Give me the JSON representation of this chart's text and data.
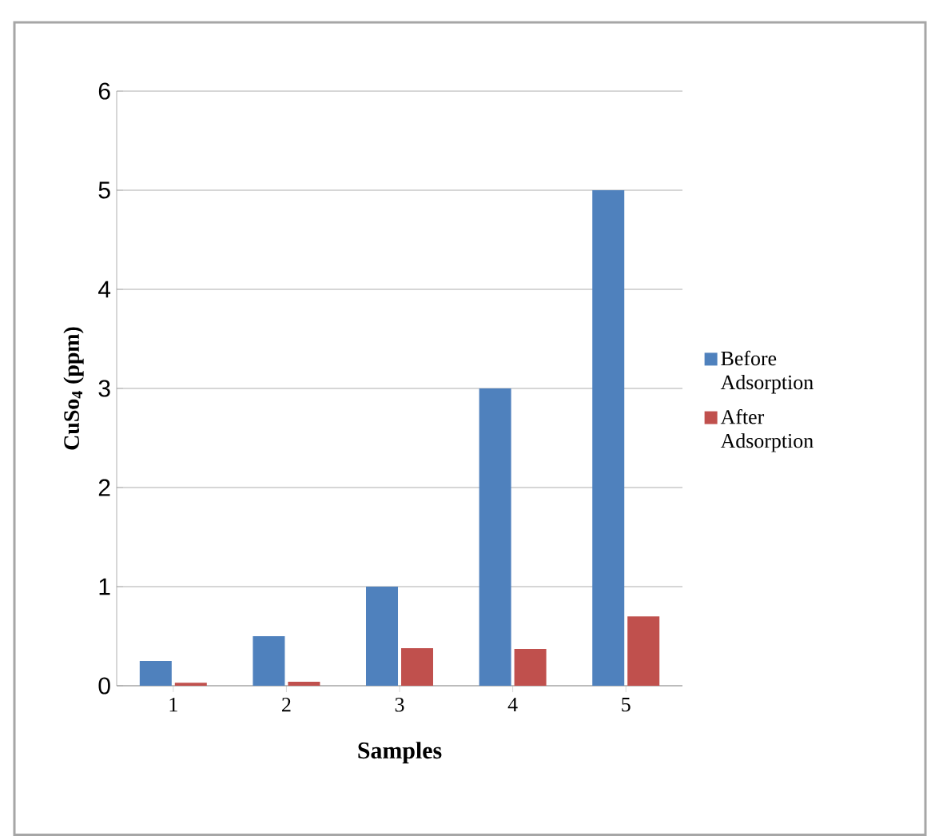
{
  "chart_data": {
    "type": "bar",
    "xlabel": "Samples",
    "ylabel": "CuSo$_{4}$ (ppm)",
    "categories": [
      "1",
      "2",
      "3",
      "4",
      "5"
    ],
    "series": [
      {
        "name": "Before Adsorption",
        "color": "#4f81bd",
        "values": [
          0.25,
          0.5,
          1,
          3,
          5
        ]
      },
      {
        "name": "After Adsorption",
        "color": "#c0504d",
        "values": [
          0.03,
          0.04,
          0.38,
          0.37,
          0.7
        ]
      }
    ],
    "ylim": [
      0,
      6
    ],
    "yticks": [
      0,
      1,
      2,
      3,
      4,
      5,
      6
    ],
    "grid": "y",
    "legend": "right"
  }
}
